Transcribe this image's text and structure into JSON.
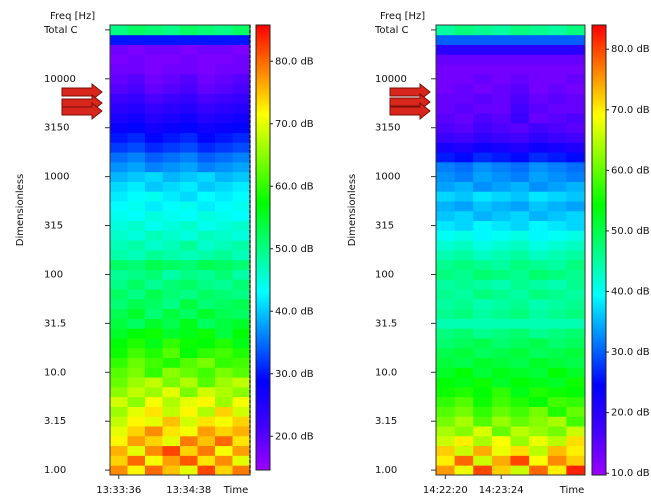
{
  "chart_data": [
    {
      "type": "heatmap",
      "y_header": "Freq [Hz]",
      "ylabel": "Dimensionless",
      "xlabel": "Time",
      "y_categories": [
        "1.00",
        null,
        null,
        null,
        null,
        "3.15",
        null,
        null,
        null,
        null,
        "10.0",
        null,
        null,
        null,
        null,
        "31.5",
        null,
        null,
        null,
        null,
        "100",
        null,
        null,
        null,
        null,
        "315",
        null,
        null,
        null,
        null,
        "1000",
        null,
        null,
        null,
        null,
        "3150",
        null,
        null,
        null,
        null,
        "10000",
        null,
        null,
        null,
        null,
        "Total C"
      ],
      "x_categories": [
        "13:33:36",
        null,
        null,
        null,
        "13:34:38",
        null,
        null,
        null
      ],
      "zlim": [
        14.6,
        85.8
      ],
      "zticks": [
        {
          "value": 20,
          "label": "20.0 dB"
        },
        {
          "value": 30,
          "label": "30.0 dB"
        },
        {
          "value": 40,
          "label": "40.0 dB"
        },
        {
          "value": 50,
          "label": "50.0 dB"
        },
        {
          "value": 60,
          "label": "60.0 dB"
        },
        {
          "value": 70,
          "label": "70.0 dB"
        },
        {
          "value": 80,
          "label": "80.0 dB"
        }
      ],
      "colormap": [
        "#9b00ff",
        "#4000ff",
        "#0000ff",
        "#0080ff",
        "#00ffff",
        "#00ff80",
        "#00ff00",
        "#80ff00",
        "#ffff00",
        "#ff8000",
        "#ff0000"
      ],
      "values": [
        [
          78,
          72,
          80,
          75,
          70,
          82,
          74,
          79
        ],
        [
          74,
          80,
          71,
          77,
          81,
          73,
          78,
          70
        ],
        [
          76,
          70,
          78,
          82,
          74,
          79,
          71,
          77
        ],
        [
          72,
          77,
          74,
          70,
          79,
          75,
          80,
          73
        ],
        [
          70,
          74,
          78,
          73,
          71,
          77,
          74,
          76
        ],
        [
          68,
          72,
          70,
          75,
          69,
          73,
          71,
          74
        ],
        [
          66,
          70,
          73,
          68,
          72,
          67,
          74,
          69
        ],
        [
          69,
          65,
          71,
          67,
          70,
          72,
          66,
          71
        ],
        [
          65,
          68,
          66,
          70,
          64,
          69,
          67,
          65
        ],
        [
          63,
          66,
          68,
          64,
          67,
          62,
          66,
          68
        ],
        [
          62,
          64,
          60,
          65,
          63,
          61,
          64,
          62
        ],
        [
          60,
          63,
          61,
          59,
          62,
          64,
          60,
          61
        ],
        [
          58,
          61,
          59,
          62,
          57,
          60,
          61,
          59
        ],
        [
          57,
          59,
          56,
          60,
          58,
          57,
          59,
          56
        ],
        [
          55,
          57,
          58,
          55,
          56,
          58,
          54,
          57
        ],
        [
          54,
          52,
          55,
          53,
          56,
          52,
          54,
          55
        ],
        [
          53,
          55,
          51,
          54,
          52,
          55,
          53,
          52
        ],
        [
          51,
          53,
          52,
          50,
          54,
          51,
          52,
          53
        ],
        [
          52,
          50,
          53,
          51,
          50,
          52,
          51,
          50
        ],
        [
          50,
          52,
          49,
          51,
          52,
          50,
          49,
          51
        ],
        [
          49,
          50,
          51,
          48,
          50,
          49,
          51,
          48
        ],
        [
          52,
          51,
          53,
          52,
          51,
          53,
          52,
          51
        ],
        [
          48,
          47,
          49,
          48,
          47,
          48,
          49,
          47
        ],
        [
          47,
          48,
          46,
          47,
          49,
          46,
          47,
          48
        ],
        [
          46,
          45,
          47,
          46,
          45,
          47,
          46,
          45
        ],
        [
          45,
          46,
          44,
          45,
          46,
          44,
          45,
          46
        ],
        [
          44,
          43,
          45,
          44,
          43,
          45,
          44,
          43
        ],
        [
          43,
          44,
          42,
          43,
          44,
          42,
          43,
          44
        ],
        [
          42,
          43,
          44,
          42,
          41,
          43,
          42,
          43
        ],
        [
          41,
          42,
          40,
          41,
          42,
          40,
          41,
          42
        ],
        [
          39,
          40,
          41,
          39,
          40,
          41,
          39,
          40
        ],
        [
          37,
          38,
          36,
          37,
          38,
          36,
          37,
          38
        ],
        [
          35,
          36,
          34,
          35,
          36,
          34,
          35,
          36
        ],
        [
          32,
          33,
          31,
          32,
          33,
          31,
          32,
          33
        ],
        [
          30,
          31,
          29,
          30,
          31,
          29,
          30,
          31
        ],
        [
          28,
          29,
          27,
          28,
          29,
          27,
          28,
          29
        ],
        [
          26,
          27,
          25,
          26,
          27,
          25,
          26,
          27
        ],
        [
          24,
          25,
          23,
          24,
          25,
          23,
          24,
          25
        ],
        [
          22,
          23,
          21,
          22,
          23,
          21,
          22,
          23
        ],
        [
          20,
          21,
          19,
          20,
          21,
          19,
          20,
          21
        ],
        [
          19,
          20,
          18,
          19,
          20,
          18,
          19,
          20
        ],
        [
          18,
          18,
          17,
          18,
          18,
          17,
          18,
          18
        ],
        [
          17,
          18,
          17,
          17,
          18,
          17,
          17,
          18
        ],
        [
          18,
          17,
          18,
          18,
          17,
          18,
          18,
          17
        ],
        [
          30,
          30,
          30,
          30,
          30,
          30,
          30,
          30
        ],
        [
          50,
          52,
          51,
          50,
          52,
          51,
          50,
          52
        ]
      ]
    },
    {
      "type": "heatmap",
      "y_header": "Freq [Hz]",
      "ylabel": "Dimensionless",
      "xlabel": "Time",
      "y_categories": [
        "1.00",
        null,
        null,
        null,
        null,
        "3.15",
        null,
        null,
        null,
        null,
        "10.0",
        null,
        null,
        null,
        null,
        "31.5",
        null,
        null,
        null,
        null,
        "100",
        null,
        null,
        null,
        null,
        "315",
        null,
        null,
        null,
        null,
        "1000",
        null,
        null,
        null,
        null,
        "3150",
        null,
        null,
        null,
        null,
        "10000",
        null,
        null,
        null,
        null,
        "Total C"
      ],
      "x_categories": [
        "14:22:20",
        null,
        null,
        "14:23:24",
        null,
        null,
        null,
        null
      ],
      "zlim": [
        9.7,
        84
      ],
      "zticks": [
        {
          "value": 10,
          "label": "10.0 dB"
        },
        {
          "value": 20,
          "label": "20.0 dB"
        },
        {
          "value": 30,
          "label": "30.0 dB"
        },
        {
          "value": 40,
          "label": "40.0 dB"
        },
        {
          "value": 50,
          "label": "50.0 dB"
        },
        {
          "value": 60,
          "label": "60.0 dB"
        },
        {
          "value": 70,
          "label": "70.0 dB"
        },
        {
          "value": 80,
          "label": "80.0 dB"
        }
      ],
      "colormap": [
        "#9b00ff",
        "#4000ff",
        "#0000ff",
        "#0080ff",
        "#00ffff",
        "#00ff80",
        "#00ff00",
        "#80ff00",
        "#ffff00",
        "#ff8000",
        "#ff0000"
      ],
      "values": [
        [
          75,
          68,
          80,
          72,
          66,
          78,
          70,
          82
        ],
        [
          70,
          78,
          66,
          74,
          80,
          69,
          76,
          72
        ],
        [
          72,
          66,
          74,
          68,
          71,
          65,
          73,
          70
        ],
        [
          66,
          70,
          64,
          69,
          63,
          68,
          65,
          71
        ],
        [
          64,
          62,
          67,
          60,
          65,
          63,
          61,
          66
        ],
        [
          61,
          64,
          59,
          63,
          60,
          62,
          64,
          58
        ],
        [
          59,
          61,
          57,
          60,
          58,
          61,
          56,
          60
        ],
        [
          57,
          59,
          55,
          58,
          56,
          54,
          58,
          57
        ],
        [
          55,
          56,
          54,
          57,
          53,
          56,
          55,
          54
        ],
        [
          54,
          53,
          55,
          52,
          54,
          53,
          52,
          55
        ],
        [
          52,
          54,
          51,
          53,
          52,
          51,
          54,
          52
        ],
        [
          51,
          50,
          52,
          51,
          50,
          52,
          51,
          50
        ],
        [
          50,
          51,
          49,
          50,
          51,
          49,
          50,
          51
        ],
        [
          48,
          49,
          50,
          48,
          49,
          50,
          48,
          49
        ],
        [
          47,
          48,
          46,
          47,
          48,
          46,
          47,
          48
        ],
        [
          44,
          44,
          44,
          44,
          44,
          44,
          44,
          44
        ],
        [
          46,
          47,
          45,
          46,
          47,
          45,
          46,
          47
        ],
        [
          45,
          46,
          44,
          45,
          46,
          44,
          45,
          46
        ],
        [
          46,
          45,
          47,
          46,
          45,
          47,
          46,
          45
        ],
        [
          45,
          46,
          45,
          44,
          46,
          45,
          44,
          46
        ],
        [
          47,
          46,
          48,
          47,
          46,
          48,
          47,
          46
        ],
        [
          46,
          47,
          46,
          45,
          47,
          46,
          45,
          47
        ],
        [
          44,
          45,
          43,
          44,
          45,
          43,
          44,
          45
        ],
        [
          42,
          43,
          41,
          42,
          43,
          41,
          42,
          43
        ],
        [
          40,
          41,
          39,
          40,
          41,
          39,
          40,
          41
        ],
        [
          38,
          37,
          39,
          38,
          37,
          39,
          38,
          37
        ],
        [
          36,
          37,
          35,
          36,
          37,
          35,
          36,
          37
        ],
        [
          35,
          34,
          36,
          35,
          34,
          36,
          35,
          34
        ],
        [
          37,
          36,
          38,
          37,
          36,
          38,
          37,
          36
        ],
        [
          34,
          35,
          33,
          34,
          35,
          33,
          34,
          35
        ],
        [
          33,
          32,
          34,
          33,
          32,
          34,
          33,
          32
        ],
        [
          32,
          31,
          33,
          32,
          31,
          33,
          32,
          31
        ],
        [
          26,
          25,
          27,
          26,
          25,
          27,
          26,
          25
        ],
        [
          22,
          21,
          23,
          22,
          21,
          23,
          22,
          21
        ],
        [
          18,
          17,
          19,
          18,
          17,
          19,
          18,
          17
        ],
        [
          16,
          15,
          17,
          16,
          15,
          17,
          16,
          15
        ],
        [
          15,
          14,
          16,
          15,
          18,
          14,
          15,
          16
        ],
        [
          14,
          15,
          14,
          14,
          17,
          15,
          14,
          14
        ],
        [
          14,
          14,
          15,
          14,
          16,
          14,
          15,
          14
        ],
        [
          13,
          14,
          13,
          14,
          15,
          13,
          14,
          13
        ],
        [
          13,
          13,
          14,
          13,
          14,
          13,
          13,
          14
        ],
        [
          13,
          13,
          13,
          13,
          13,
          13,
          13,
          13
        ],
        [
          14,
          14,
          14,
          14,
          14,
          14,
          14,
          14
        ],
        [
          20,
          20,
          20,
          20,
          20,
          20,
          20,
          20
        ],
        [
          30,
          30,
          30,
          30,
          30,
          30,
          30,
          30
        ],
        [
          45,
          47,
          46,
          45,
          47,
          46,
          45,
          47
        ]
      ]
    }
  ]
}
